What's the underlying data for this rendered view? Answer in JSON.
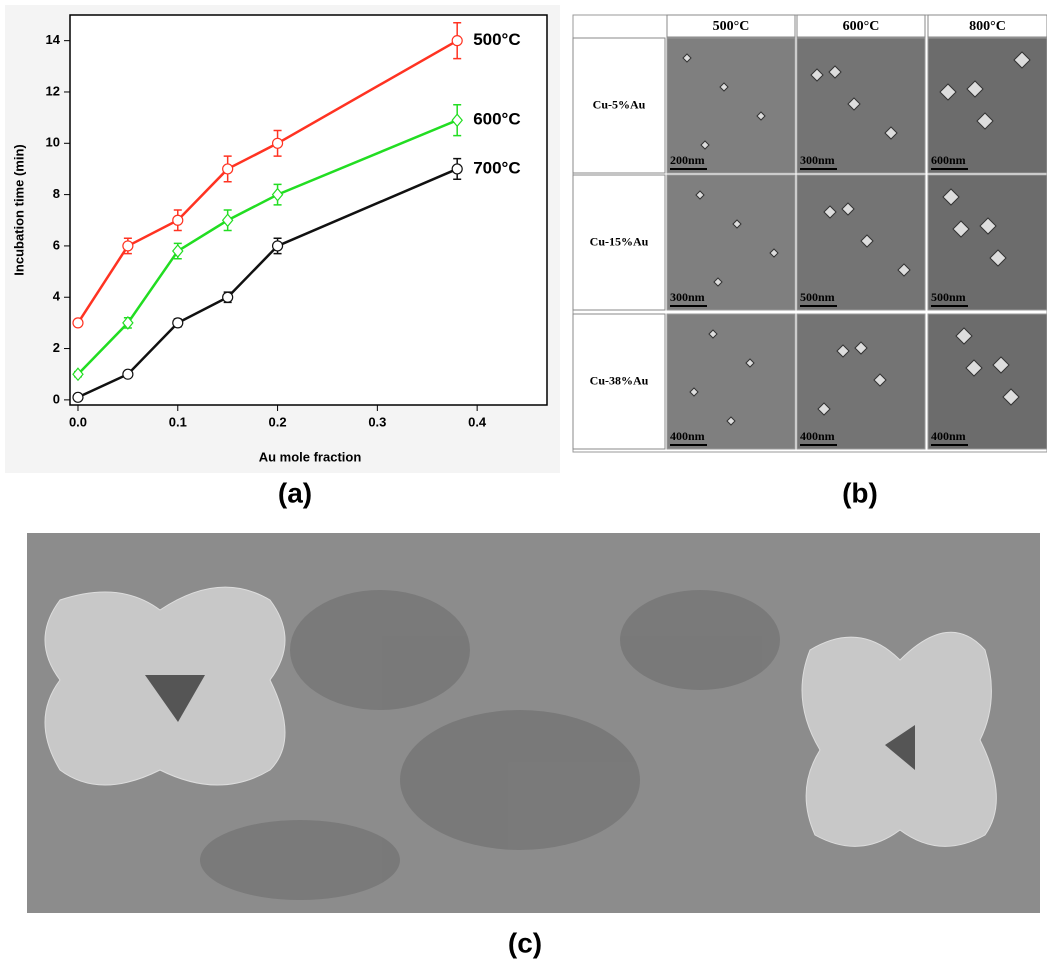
{
  "chart_data": {
    "type": "line",
    "xlabel": "Au mole fraction",
    "ylabel": "Incubation time (min)",
    "x": [
      0,
      0.05,
      0.1,
      0.15,
      0.2,
      0.38
    ],
    "series": [
      {
        "name": "500°C",
        "color": "#ff3322",
        "marker": "circle",
        "values": [
          3,
          6,
          7,
          9,
          10,
          14
        ],
        "errors": [
          0.1,
          0.3,
          0.4,
          0.5,
          0.5,
          0.7
        ]
      },
      {
        "name": "600°C",
        "color": "#22dd22",
        "marker": "diamond",
        "values": [
          1,
          3,
          5.8,
          7,
          8,
          10.9
        ],
        "errors": [
          0.1,
          0.2,
          0.3,
          0.4,
          0.4,
          0.6
        ]
      },
      {
        "name": "700°C",
        "color": "#111111",
        "marker": "circle",
        "values": [
          0.1,
          1,
          3,
          4,
          6,
          9
        ],
        "errors": [
          0.1,
          0.1,
          0.15,
          0.2,
          0.3,
          0.4
        ]
      }
    ],
    "xlim": [
      -0.008,
      0.47
    ],
    "xticks": [
      {
        "value": 0,
        "label": "0.0"
      },
      0.1,
      0.2,
      0.3,
      0.4
    ],
    "ylim": [
      -0.2,
      15
    ],
    "yticks": [
      0,
      2,
      4,
      6,
      8,
      10,
      12,
      14
    ]
  },
  "panel_labels": [
    "(a)",
    "(b)",
    "(c)"
  ],
  "micrograph_grid": {
    "columns": [
      "500°C",
      "600°C",
      "800°C"
    ],
    "rows": [
      {
        "label": "Cu-5%Au",
        "scale_bars": [
          "200nm",
          "300nm",
          "600nm"
        ]
      },
      {
        "label": "Cu-15%Au",
        "scale_bars": [
          "300nm",
          "500nm",
          "500nm"
        ]
      },
      {
        "label": "Cu-38%Au",
        "scale_bars": [
          "400nm",
          "400nm",
          "400nm"
        ]
      }
    ]
  }
}
